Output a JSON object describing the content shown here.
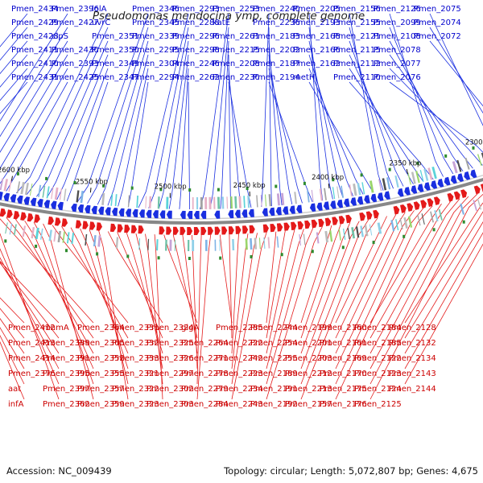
{
  "title": "Pseudomonas mendocina ymp, complete genome",
  "footer": {
    "accession": "Accession: NC_009439",
    "topology": "Topology: circular; Length: 5,072,807 bp; Genes: 4,675"
  },
  "ticks": [
    "2650 kbp",
    "2600 kbp",
    "2550 kbp",
    "2500 kbp",
    "2450 kbp",
    "2400 kbp",
    "2350 kbp",
    "2300 kbp"
  ],
  "colors": {
    "forward": "#1a2fe0",
    "reverse": "#e41a1a",
    "backbone": "#888888",
    "label_fwd": "#0000cc",
    "label_rev": "#cc0000"
  },
  "forward_genes": [
    "Pmen_2434",
    "Pmen_2429",
    "Pmen_2428",
    "Pmen_2411",
    "Pmen_2410",
    "Pmen_2431",
    "Pmen_2396",
    "Pmen_2427",
    "clpS",
    "Pmen_2430",
    "Pmen_2393",
    "Pmen_2425",
    "lolA",
    "uvrC",
    "Pmen_2351",
    "Pmen_2350",
    "Pmen_2349",
    "Pmen_2347",
    "Pmen_2346",
    "Pmen_2345",
    "Pmen_2339",
    "Pmen_2295",
    "Pmen_2304",
    "Pmen_2294",
    "Pmen_2293",
    "Pmen_2288",
    "Pmen_2296",
    "Pmen_2298",
    "Pmen_2246",
    "Pmen_2262",
    "Pmen_2253",
    "katE",
    "Pmen_2261",
    "Pmen_2215",
    "Pmen_2208",
    "Pmen_2230",
    "Pmen_2240",
    "Pmen_2236",
    "Pmen_2183",
    "Pmen_2202",
    "Pmen_2187",
    "Pmen_2194",
    "Pmen_2205",
    "Pmen_2193",
    "Pmen_2168",
    "Pmen_2166",
    "Pmen_2162",
    "metH",
    "Pmen_2156",
    "Pmen_2155",
    "Pmen_2121",
    "Pmen_2115",
    "Pmen_2112",
    "Pmen_2110",
    "Pmen_2126",
    "Pmen_2099",
    "Pmen_2108",
    "Pmen_2078",
    "Pmen_2077",
    "Pmen_2076",
    "Pmen_2075",
    "Pmen_2074",
    "Pmen_2072"
  ],
  "reverse_genes": [
    "Pmen_2412",
    "Pmen_2413",
    "Pmen_2414",
    "Pmen_2376",
    "aat",
    "infA",
    "mnmA",
    "Pmen_2389",
    "Pmen_2391",
    "Pmen_2395",
    "Pmen_2397",
    "Pmen_2362",
    "Pmen_2364",
    "Pmen_2365",
    "Pmen_2352",
    "Pmen_2355",
    "Pmen_2357",
    "Pmen_2359",
    "Pmen_2331",
    "Pmen_2332",
    "Pmen_2333",
    "Pmen_2321",
    "Pmen_2322",
    "Pmen_2323",
    "Pmen_2324",
    "Pmen_2325",
    "Pmen_2326",
    "Pmen_2297",
    "Pmen_2302",
    "Pmen_2303",
    "glgA",
    "Pmen_2264",
    "Pmen_2271",
    "Pmen_2278",
    "Pmen_2279",
    "Pmen_2284",
    "Pmen_2285",
    "Pmen_2222",
    "Pmen_2242",
    "Pmen_2223",
    "Pmen_2234",
    "Pmen_2243",
    "Pmen_2244",
    "Pmen_2254",
    "Pmen_2255",
    "Pmen_2189",
    "Pmen_2191",
    "Pmen_2192",
    "Pmen_2199",
    "Pmen_2201",
    "Pmen_2203",
    "Pmen_2212",
    "Pmen_2213",
    "Pmen_2157",
    "Pmen_2160",
    "Pmen_2161",
    "Pmen_2169",
    "Pmen_2170",
    "Pmen_2175",
    "Pmen_2176",
    "Pmen_2184",
    "Pmen_2185",
    "Pmen_2122",
    "Pmen_2123",
    "Pmen_2124",
    "Pmen_2125",
    "Pmen_2128",
    "Pmen_2132",
    "Pmen_2134",
    "Pmen_2143",
    "Pmen_2144"
  ]
}
